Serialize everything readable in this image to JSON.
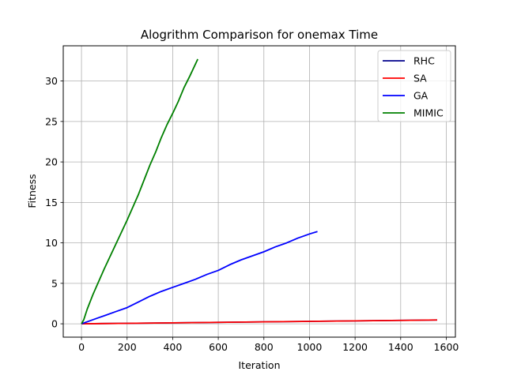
{
  "chart_data": {
    "type": "line",
    "title": "Alogrithm Comparison for onemax Time",
    "xlabel": "Iteration",
    "ylabel": "Fitness",
    "xlim": [
      -80,
      1640
    ],
    "ylim": [
      -1.65,
      34.35
    ],
    "xticks": [
      0,
      200,
      400,
      600,
      800,
      1000,
      1200,
      1400,
      1600
    ],
    "yticks": [
      0,
      5,
      10,
      15,
      20,
      25,
      30
    ],
    "grid": true,
    "legend_position": "top-right",
    "series": [
      {
        "name": "RHC",
        "color": "#00008b",
        "x": [
          0,
          200,
          400,
          600,
          800,
          1000,
          1200,
          1400,
          1560
        ],
        "y": [
          0,
          0.06,
          0.12,
          0.18,
          0.24,
          0.3,
          0.36,
          0.42,
          0.47
        ]
      },
      {
        "name": "SA",
        "color": "#ff0000",
        "x": [
          0,
          200,
          400,
          600,
          800,
          1000,
          1200,
          1400,
          1560
        ],
        "y": [
          0,
          0.06,
          0.12,
          0.18,
          0.24,
          0.3,
          0.36,
          0.42,
          0.47
        ]
      },
      {
        "name": "GA",
        "color": "#0000ff",
        "x": [
          0,
          50,
          100,
          150,
          200,
          250,
          300,
          350,
          400,
          450,
          500,
          550,
          600,
          650,
          700,
          750,
          800,
          850,
          900,
          950,
          1000,
          1035
        ],
        "y": [
          0,
          0.5,
          1.0,
          1.5,
          2.0,
          2.7,
          3.4,
          4.0,
          4.5,
          5.0,
          5.5,
          6.1,
          6.6,
          7.3,
          7.9,
          8.4,
          8.9,
          9.5,
          10.0,
          10.6,
          11.1,
          11.4
        ]
      },
      {
        "name": "MIMIC",
        "color": "#008000",
        "x": [
          0,
          10,
          25,
          50,
          75,
          100,
          125,
          150,
          175,
          200,
          225,
          250,
          275,
          300,
          325,
          350,
          375,
          400,
          425,
          450,
          475,
          510
        ],
        "y": [
          0,
          0.5,
          1.8,
          3.6,
          5.2,
          6.8,
          8.3,
          9.8,
          11.3,
          12.8,
          14.4,
          16.0,
          17.8,
          19.6,
          21.2,
          23.0,
          24.6,
          26.0,
          27.5,
          29.2,
          30.6,
          32.7
        ]
      }
    ]
  }
}
